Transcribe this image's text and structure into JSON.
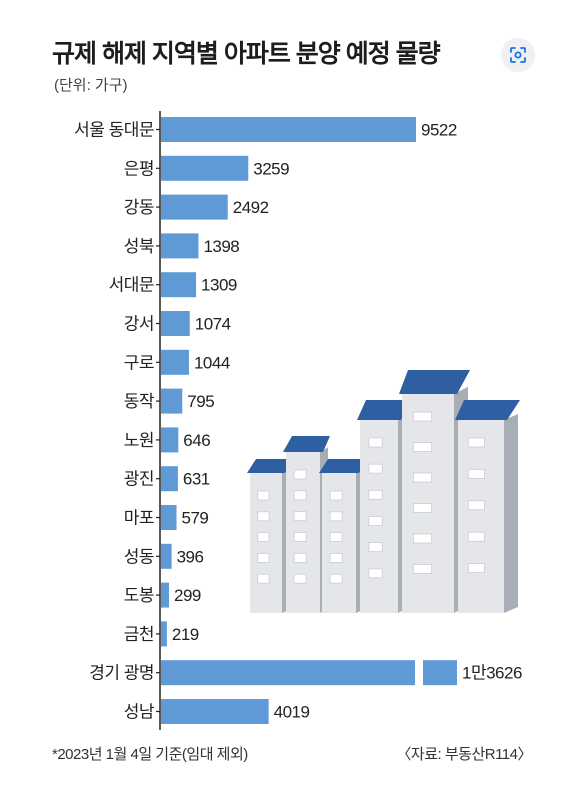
{
  "title": "규제 해제 지역별 아파트 분양 예정 물량",
  "unit_note": "(단위: 가구)",
  "footnote": "*2023년 1월 4일 기준(임대 제외)",
  "source": "〈자료: 부동산R114〉",
  "lens_icon": "image-search-icon",
  "colors": {
    "bar": "#5f9ad6",
    "axis": "#222222",
    "building_roof": "#2f5fa3"
  },
  "chart_data": {
    "type": "bar",
    "orientation": "horizontal",
    "title": "규제 해제 지역별 아파트 분양 예정 물량",
    "unit": "(단위: 가구)",
    "xlabel": "",
    "ylabel": "",
    "axis_break": true,
    "categories": [
      "서울 동대문",
      "은평",
      "강동",
      "성북",
      "서대문",
      "강서",
      "구로",
      "동작",
      "노원",
      "광진",
      "마포",
      "성동",
      "도봉",
      "금천",
      "경기 광명",
      "성남"
    ],
    "values": [
      9522,
      3259,
      2492,
      1398,
      1309,
      1074,
      1044,
      795,
      646,
      631,
      579,
      396,
      299,
      219,
      13626,
      4019
    ],
    "value_labels": [
      "9522",
      "3259",
      "2492",
      "1398",
      "1309",
      "1074",
      "1044",
      "795",
      "646",
      "631",
      "579",
      "396",
      "299",
      "219",
      "1만3626",
      "4019"
    ],
    "xlim": [
      0,
      13626
    ],
    "grid": false,
    "legend": "none"
  }
}
